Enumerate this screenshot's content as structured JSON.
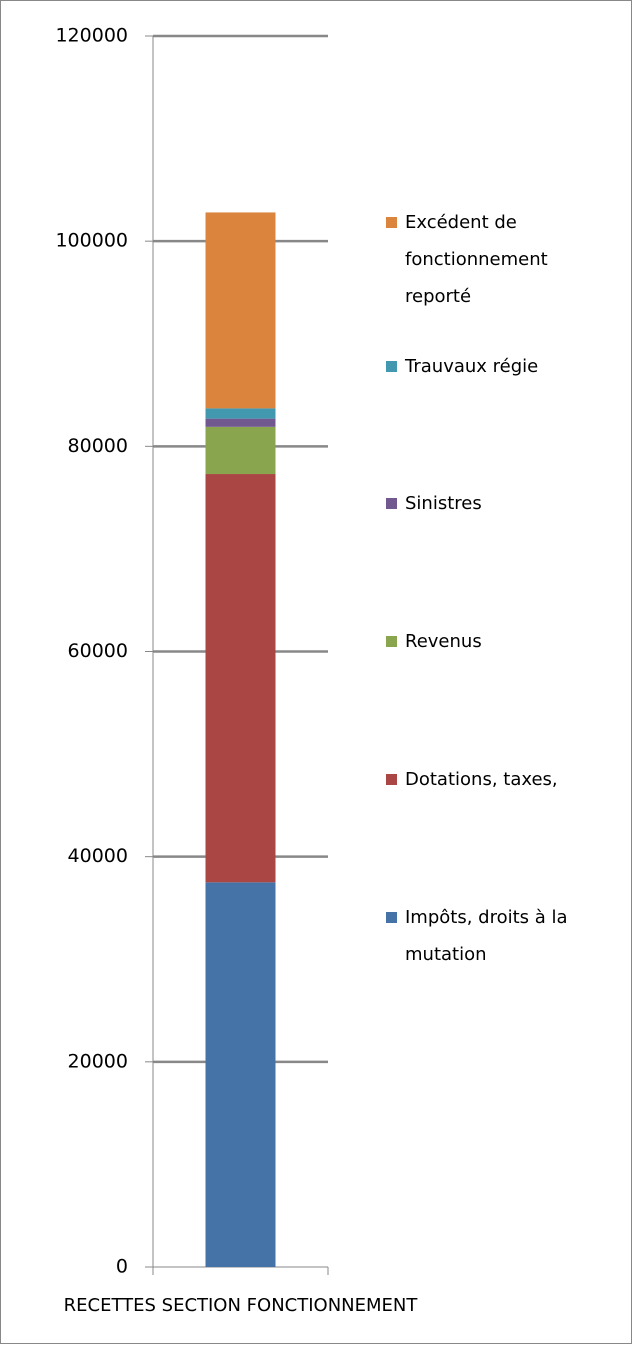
{
  "chart_data": {
    "type": "stacked_bar",
    "categories": [
      "RECETTES SECTION FONCTIONNEMENT"
    ],
    "series": [
      {
        "name": "Impôts, droits à la mutation",
        "color": "#4572a7",
        "values": [
          37500
        ]
      },
      {
        "name": "Dotations, taxes,",
        "color": "#aa4643",
        "values": [
          39800
        ]
      },
      {
        "name": "Revenus",
        "color": "#89a54e",
        "values": [
          4600
        ]
      },
      {
        "name": "Sinistres",
        "color": "#71588f",
        "values": [
          800
        ]
      },
      {
        "name": "Trauvaux régie",
        "color": "#4198af",
        "values": [
          1000
        ]
      },
      {
        "name": "Excédent de fonctionnement reporté",
        "color": "#db843d",
        "values": [
          19100
        ]
      }
    ],
    "ylim": [
      0,
      120000
    ],
    "yticks": [
      0,
      20000,
      40000,
      60000,
      80000,
      100000,
      120000
    ],
    "grid": true,
    "legend": "right"
  }
}
